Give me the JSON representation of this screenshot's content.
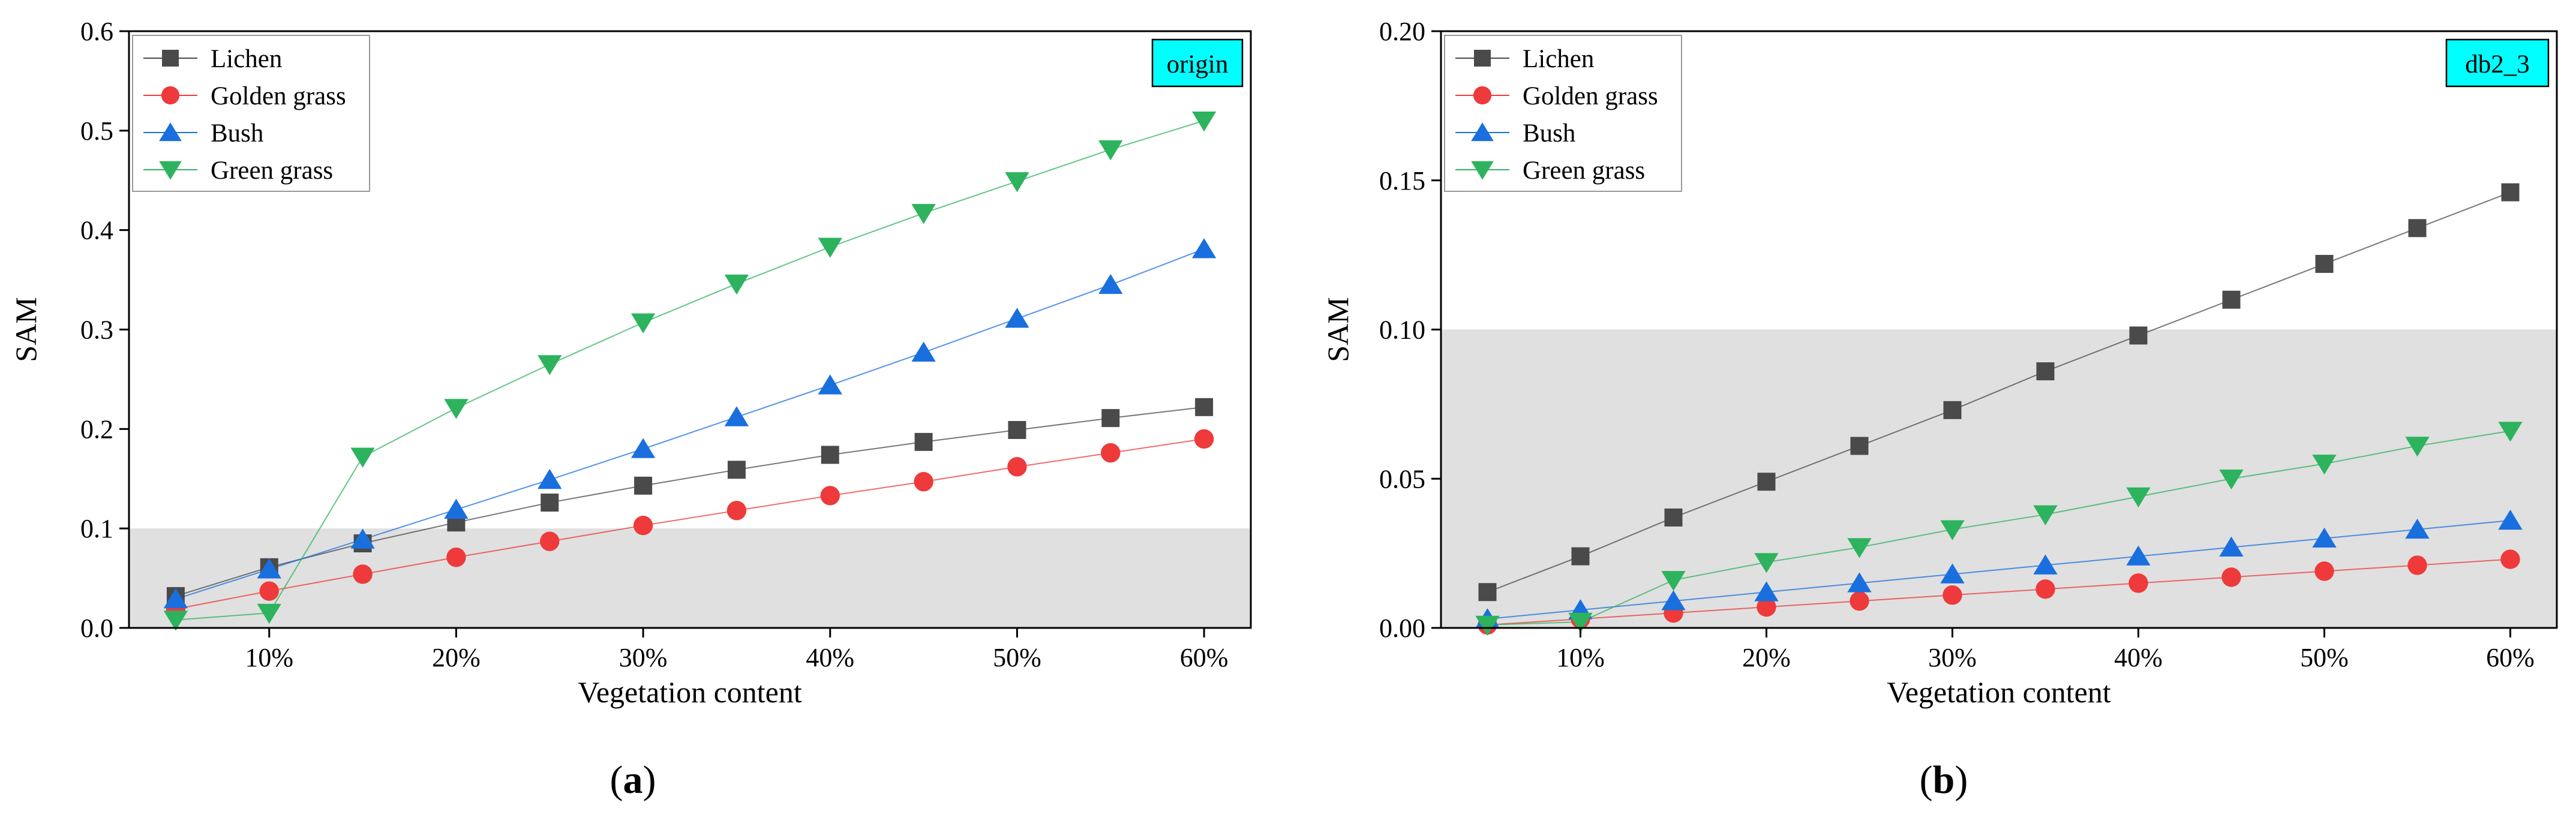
{
  "panel_captions": [
    "(a)",
    "(b)"
  ],
  "panel_letters": [
    "a",
    "b"
  ],
  "chart_data": [
    {
      "type": "line",
      "badge": "origin",
      "badge_color": "#00ffff",
      "xlabel": "Vegetation content",
      "ylabel": "SAM",
      "x": [
        5,
        10,
        15,
        20,
        25,
        30,
        35,
        40,
        45,
        50,
        55,
        60
      ],
      "xlim": [
        2.5,
        62.5
      ],
      "xticks": [
        10,
        20,
        30,
        40,
        50,
        60
      ],
      "xtick_labels": [
        "10%",
        "20%",
        "30%",
        "40%",
        "50%",
        "60%"
      ],
      "ylim": [
        0,
        0.6
      ],
      "yticks": [
        0.0,
        0.1,
        0.2,
        0.3,
        0.4,
        0.5,
        0.6
      ],
      "ytick_labels": [
        "0.0",
        "0.1",
        "0.2",
        "0.3",
        "0.4",
        "0.5",
        "0.6"
      ],
      "shaded_band": [
        0,
        0.1
      ],
      "shade_color": "#e0e0e0",
      "legend_position": "top-left",
      "series": [
        {
          "name": "Lichen",
          "color": "#4a4a4a",
          "marker": "square",
          "values": [
            0.032,
            0.061,
            0.085,
            0.106,
            0.126,
            0.143,
            0.159,
            0.174,
            0.187,
            0.199,
            0.211,
            0.222
          ]
        },
        {
          "name": "Golden grass",
          "color": "#ee3a3a",
          "marker": "circle",
          "values": [
            0.019,
            0.037,
            0.054,
            0.071,
            0.087,
            0.103,
            0.118,
            0.133,
            0.147,
            0.162,
            0.176,
            0.19
          ]
        },
        {
          "name": "Bush",
          "color": "#1a6fdf",
          "marker": "triangle-up",
          "values": [
            0.029,
            0.059,
            0.089,
            0.119,
            0.149,
            0.18,
            0.212,
            0.244,
            0.277,
            0.311,
            0.345,
            0.381
          ]
        },
        {
          "name": "Green grass",
          "color": "#2db35d",
          "marker": "triangle-down",
          "values": [
            0.008,
            0.015,
            0.172,
            0.221,
            0.265,
            0.307,
            0.346,
            0.383,
            0.417,
            0.449,
            0.481,
            0.51
          ]
        }
      ]
    },
    {
      "type": "line",
      "badge": "db2_3",
      "badge_color": "#00ffff",
      "xlabel": "Vegetation content",
      "ylabel": "SAM",
      "x": [
        5,
        10,
        15,
        20,
        25,
        30,
        35,
        40,
        45,
        50,
        55,
        60
      ],
      "xlim": [
        2.5,
        62.5
      ],
      "xticks": [
        10,
        20,
        30,
        40,
        50,
        60
      ],
      "xtick_labels": [
        "10%",
        "20%",
        "30%",
        "40%",
        "50%",
        "60%"
      ],
      "ylim": [
        0,
        0.2
      ],
      "yticks": [
        0.0,
        0.05,
        0.1,
        0.15,
        0.2
      ],
      "ytick_labels": [
        "0.00",
        "0.05",
        "0.10",
        "0.15",
        "0.20"
      ],
      "shaded_band": [
        0,
        0.1
      ],
      "shade_color": "#e0e0e0",
      "legend_position": "top-left",
      "series": [
        {
          "name": "Lichen",
          "color": "#4a4a4a",
          "marker": "square",
          "values": [
            0.012,
            0.024,
            0.037,
            0.049,
            0.061,
            0.073,
            0.086,
            0.098,
            0.11,
            0.122,
            0.134,
            0.146
          ]
        },
        {
          "name": "Golden grass",
          "color": "#ee3a3a",
          "marker": "circle",
          "values": [
            0.001,
            0.003,
            0.005,
            0.007,
            0.009,
            0.011,
            0.013,
            0.015,
            0.017,
            0.019,
            0.021,
            0.023
          ]
        },
        {
          "name": "Bush",
          "color": "#1a6fdf",
          "marker": "triangle-up",
          "values": [
            0.003,
            0.006,
            0.009,
            0.012,
            0.015,
            0.018,
            0.021,
            0.024,
            0.027,
            0.03,
            0.033,
            0.036
          ]
        },
        {
          "name": "Green grass",
          "color": "#2db35d",
          "marker": "triangle-down",
          "values": [
            0.001,
            0.002,
            0.016,
            0.022,
            0.027,
            0.033,
            0.038,
            0.044,
            0.05,
            0.055,
            0.061,
            0.066
          ]
        }
      ]
    }
  ]
}
